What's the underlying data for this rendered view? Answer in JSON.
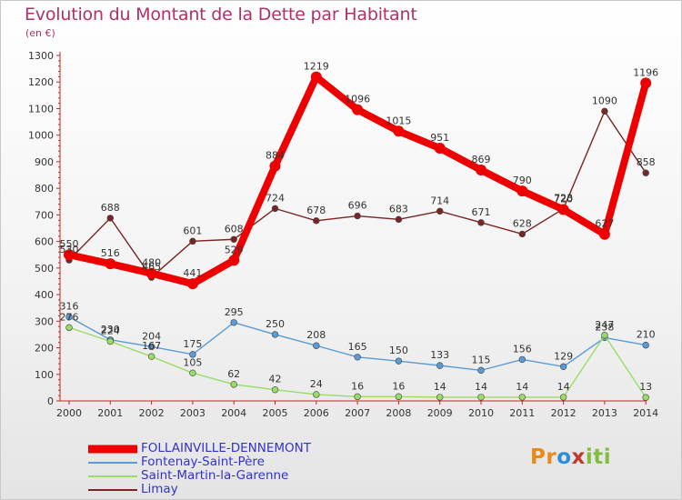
{
  "title": "Evolution du Montant de la Dette par Habitant",
  "subtitle": "(en €)",
  "logo": {
    "letters": [
      "P",
      "r",
      "o",
      "x",
      "i",
      "t",
      "i"
    ],
    "colors": [
      "#e88a1a",
      "#e88a1a",
      "#2a8fd6",
      "#c0392b",
      "#7fbf3f",
      "#7fbf3f",
      "#7fbf3f"
    ]
  },
  "chart_data": {
    "type": "line",
    "title": "Evolution du Montant de la Dette par Habitant",
    "subtitle": "(en €)",
    "x": [
      2000,
      2001,
      2002,
      2003,
      2004,
      2005,
      2006,
      2007,
      2008,
      2009,
      2010,
      2011,
      2012,
      2013,
      2014
    ],
    "ylim": [
      0,
      1300
    ],
    "yticks": [
      0,
      100,
      200,
      300,
      400,
      500,
      600,
      700,
      800,
      900,
      1000,
      1100,
      1200,
      1300
    ],
    "grid": false,
    "legend_position": "bottom-left",
    "series": [
      {
        "name": "FOLLAINVILLE-DENNEMONT",
        "color": "#ee0000",
        "values": [
          550,
          516,
          480,
          441,
          529,
          884,
          1219,
          1096,
          1015,
          951,
          869,
          790,
          720,
          627,
          1196
        ],
        "labels": [
          "550",
          "516",
          "480",
          "441",
          "529",
          "884",
          "1219",
          "1096",
          "1015",
          "951",
          "869",
          "790",
          "720",
          "627",
          "1196"
        ]
      },
      {
        "name": "Fontenay-Saint-Père",
        "color": "#5b9bd5",
        "values": [
          316,
          230,
          204,
          175,
          295,
          250,
          208,
          165,
          150,
          133,
          115,
          156,
          129,
          238,
          210
        ],
        "labels": [
          "316",
          "230",
          "204",
          "175",
          "295",
          "250",
          "208",
          "165",
          "150",
          "133",
          "115",
          "156",
          "129",
          "238",
          "210"
        ]
      },
      {
        "name": "Saint-Martin-la-Garenne",
        "color": "#99dd66",
        "values": [
          276,
          224,
          167,
          105,
          62,
          42,
          24,
          16,
          16,
          14,
          14,
          14,
          14,
          247,
          13
        ],
        "labels": [
          "276",
          "224",
          "167",
          "105",
          "62",
          "42",
          "24",
          "16",
          "16",
          "14",
          "14",
          "14",
          "14",
          "247",
          "13"
        ]
      },
      {
        "name": "Limay",
        "color": "#7a2525",
        "values": [
          530,
          688,
          465,
          601,
          608,
          724,
          678,
          696,
          683,
          714,
          671,
          628,
          723,
          1090,
          858
        ],
        "labels": [
          "530",
          "688",
          "465",
          "601",
          "608",
          "724",
          "678",
          "696",
          "683",
          "714",
          "671",
          "628",
          "723",
          "1090",
          "858"
        ]
      }
    ]
  }
}
